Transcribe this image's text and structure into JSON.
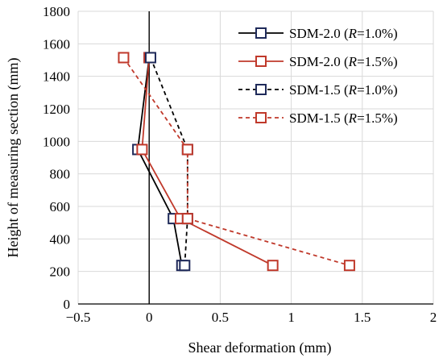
{
  "chart_data": {
    "type": "line",
    "xlabel": "Shear deformation (mm)",
    "ylabel": "Height of measuring section (mm)",
    "xlim": [
      -0.5,
      2
    ],
    "ylim": [
      0,
      1800
    ],
    "xticks": [
      -0.5,
      0,
      0.5,
      1,
      1.5,
      2
    ],
    "xtick_labels": [
      "−0.5",
      "0",
      "0.5",
      "1",
      "1.5",
      "2"
    ],
    "yticks": [
      0,
      200,
      400,
      600,
      800,
      1000,
      1200,
      1400,
      1600,
      1800
    ],
    "ytick_labels": [
      "0",
      "200",
      "400",
      "600",
      "800",
      "1000",
      "1200",
      "1400",
      "1600",
      "1800"
    ],
    "grid": true,
    "zero_line": true,
    "legend_position": "top-right",
    "series": [
      {
        "name": "SDM-2.0 (R=1.0%)",
        "name_prefix": "SDM-2.0 (",
        "name_italic": "R",
        "name_suffix": "=1.0%)",
        "color": "#000000",
        "marker_color": "#1f2a5a",
        "dash": "solid",
        "points": [
          [
            0.0,
            1515
          ],
          [
            -0.08,
            950
          ],
          [
            0.17,
            525
          ],
          [
            0.23,
            237
          ]
        ]
      },
      {
        "name": "SDM-2.0 (R=1.5%)",
        "name_prefix": "SDM-2.0 (",
        "name_italic": "R",
        "name_suffix": "=1.5%)",
        "color": "#c0392b",
        "marker_color": "#c0392b",
        "dash": "solid",
        "points": [
          [
            0.0,
            1515
          ],
          [
            -0.05,
            950
          ],
          [
            0.22,
            525
          ],
          [
            0.87,
            237
          ]
        ]
      },
      {
        "name": "SDM-1.5 (R=1.0%)",
        "name_prefix": "SDM-1.5 (",
        "name_italic": "R",
        "name_suffix": "=1.0%)",
        "color": "#000000",
        "marker_color": "#1f2a5a",
        "dash": "dashed",
        "points": [
          [
            0.01,
            1515
          ],
          [
            0.27,
            950
          ],
          [
            0.27,
            525
          ],
          [
            0.25,
            237
          ]
        ]
      },
      {
        "name": "SDM-1.5 (R=1.5%)",
        "name_prefix": "SDM-1.5 (",
        "name_italic": "R",
        "name_suffix": "=1.5%)",
        "color": "#c0392b",
        "marker_color": "#c0392b",
        "dash": "dashed",
        "points": [
          [
            -0.18,
            1515
          ],
          [
            0.27,
            950
          ],
          [
            0.27,
            525
          ],
          [
            1.41,
            237
          ]
        ]
      }
    ]
  }
}
